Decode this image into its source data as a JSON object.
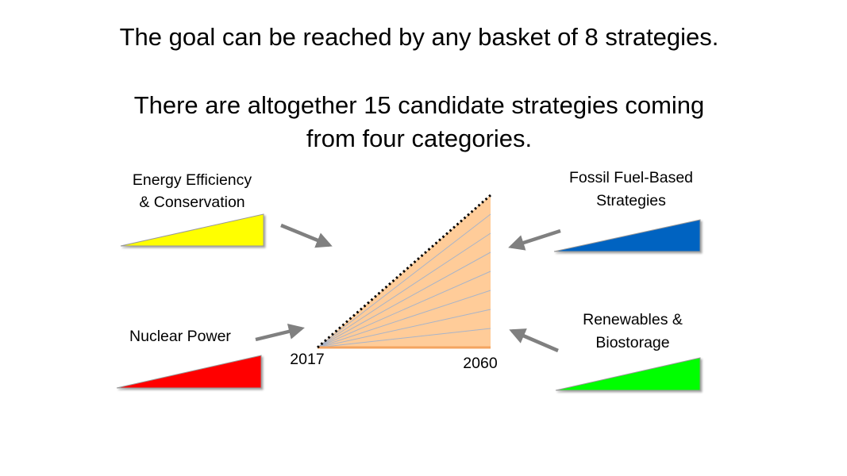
{
  "title": {
    "line1": "The goal can be reached by any basket of 8 strategies.",
    "line2": "There are altogether 15 candidate strategies coming",
    "line3": "from four categories."
  },
  "categories": [
    {
      "label_lines": [
        "Energy Efficiency",
        "& Conservation"
      ],
      "color": "#FFFF00"
    },
    {
      "label_lines": [
        "Fossil Fuel-Based",
        "Strategies"
      ],
      "color": "#0563C1"
    },
    {
      "label_lines": [
        "Nuclear Power"
      ],
      "color": "#FF0000"
    },
    {
      "label_lines": [
        "Renewables &",
        "Biostorage"
      ],
      "color": "#00FF00"
    }
  ],
  "stabilization_triangle": {
    "start_year": "2017",
    "end_year": "2060",
    "fill_color": "#FFCC99",
    "wedge_count": 8
  }
}
